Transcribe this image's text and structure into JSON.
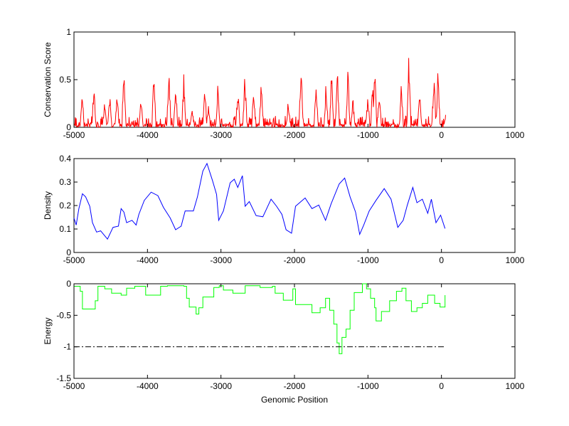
{
  "chart_data": [
    {
      "type": "line",
      "ylabel": "Conservation Score",
      "xlabel": "",
      "xlim": [
        -5000,
        1000
      ],
      "ylim": [
        0,
        1
      ],
      "xticks": [
        "-5000",
        "-4000",
        "-3000",
        "-2000",
        "-1000",
        "0",
        "1000"
      ],
      "yticks": [
        "0",
        "0.5",
        "1"
      ],
      "color": "#ff0000",
      "grid": false,
      "series": [
        {
          "name": "conservation",
          "x": [
            -4889,
            -4729,
            -4581,
            -4514,
            -4414,
            -4321,
            -4087,
            -3913,
            -3709,
            -3616,
            -3505,
            -3394,
            -3219,
            -3171,
            -3041,
            -2770,
            -2674,
            -2555,
            -2451,
            -2084,
            -1910,
            -1706,
            -1569,
            -1495,
            -1417,
            -1272,
            -1205,
            -1001,
            -937,
            -908,
            -845,
            -544,
            -444,
            -296,
            -103,
            -47,
            56
          ],
          "y": [
            0.44,
            0.48,
            0.3,
            0.37,
            0.43,
            0.67,
            0.36,
            0.62,
            0.64,
            0.55,
            0.58,
            0.24,
            0.45,
            0.27,
            0.49,
            0.45,
            0.63,
            0.44,
            0.51,
            0.31,
            0.67,
            0.49,
            0.52,
            0.69,
            0.66,
            0.63,
            0.33,
            0.36,
            0.51,
            0.67,
            0.43,
            0.5,
            0.82,
            0.39,
            0.6,
            0.64,
            0.13
          ]
        }
      ]
    },
    {
      "type": "line",
      "ylabel": "Density",
      "xlabel": "",
      "xlim": [
        -5000,
        1000
      ],
      "ylim": [
        0,
        0.4
      ],
      "xticks": [
        "-5000",
        "-4000",
        "-3000",
        "-2000",
        "-1000",
        "0",
        "1000"
      ],
      "yticks": [
        "0",
        "0.1",
        "0.2",
        "0.3",
        "0.4"
      ],
      "color": "#0000ff",
      "grid": false,
      "series": [
        {
          "name": "density",
          "x": [
            -5000,
            -4970,
            -4933,
            -4885,
            -4841,
            -4785,
            -4748,
            -4692,
            -4637,
            -4544,
            -4469,
            -4395,
            -4358,
            -4321,
            -4284,
            -4210,
            -4154,
            -4117,
            -4043,
            -3950,
            -3858,
            -3783,
            -3691,
            -3617,
            -3542,
            -3487,
            -3375,
            -3320,
            -3246,
            -3190,
            -3116,
            -3060,
            -3031,
            -2967,
            -2875,
            -2819,
            -2771,
            -2708,
            -2671,
            -2615,
            -2522,
            -2430,
            -2318,
            -2244,
            -2170,
            -2114,
            -2040,
            -1985,
            -1855,
            -1762,
            -1669,
            -1577,
            -1502,
            -1391,
            -1317,
            -1243,
            -1169,
            -1113,
            -1057,
            -983,
            -890,
            -779,
            -686,
            -594,
            -520,
            -464,
            -390,
            -334,
            -260,
            -186,
            -137,
            -74,
            -11,
            49
          ],
          "y": [
            0.147,
            0.117,
            0.187,
            0.25,
            0.237,
            0.197,
            0.127,
            0.087,
            0.092,
            0.057,
            0.107,
            0.112,
            0.187,
            0.172,
            0.127,
            0.137,
            0.117,
            0.162,
            0.222,
            0.257,
            0.242,
            0.192,
            0.147,
            0.097,
            0.112,
            0.177,
            0.177,
            0.237,
            0.347,
            0.379,
            0.307,
            0.247,
            0.137,
            0.177,
            0.297,
            0.312,
            0.277,
            0.327,
            0.197,
            0.217,
            0.157,
            0.152,
            0.227,
            0.197,
            0.162,
            0.097,
            0.082,
            0.197,
            0.232,
            0.187,
            0.202,
            0.137,
            0.207,
            0.292,
            0.317,
            0.237,
            0.172,
            0.077,
            0.117,
            0.177,
            0.222,
            0.272,
            0.227,
            0.107,
            0.137,
            0.202,
            0.277,
            0.212,
            0.227,
            0.167,
            0.227,
            0.127,
            0.159,
            0.102
          ]
        }
      ]
    },
    {
      "type": "line",
      "ylabel": "Energy",
      "xlabel": "Genomic Position",
      "xlim": [
        -5000,
        1000
      ],
      "ylim": [
        -1.5,
        0
      ],
      "xticks": [
        "-5000",
        "-4000",
        "-3000",
        "-2000",
        "-1000",
        "0",
        "1000"
      ],
      "yticks": [
        "-1.5",
        "-1",
        "-0.5",
        "0"
      ],
      "color": "#00ff00",
      "grid": false,
      "threshold": {
        "y": -1,
        "style": "dash-dot",
        "color": "#000000",
        "x": [
          -5000,
          50
        ]
      },
      "series": [
        {
          "name": "energy",
          "x": [
            -5000,
            -4915,
            -4885,
            -4766,
            -4711,
            -4674,
            -4581,
            -4488,
            -4358,
            -4284,
            -4173,
            -4025,
            -3876,
            -3821,
            -3728,
            -3505,
            -3468,
            -3431,
            -3338,
            -3301,
            -3246,
            -3153,
            -3097,
            -3023,
            -2967,
            -2838,
            -2671,
            -2467,
            -2300,
            -2263,
            -2152,
            -2022,
            -1985,
            -1855,
            -1762,
            -1651,
            -1577,
            -1521,
            -1465,
            -1421,
            -1391,
            -1354,
            -1298,
            -1243,
            -1187,
            -1076,
            -1020,
            -965,
            -909,
            -890,
            -816,
            -705,
            -612,
            -538,
            -483,
            -409,
            -334,
            -260,
            -186,
            -93,
            -19,
            49
          ],
          "y": [
            -0.04,
            -0.12,
            -0.4,
            -0.4,
            -0.27,
            -0.04,
            -0.08,
            -0.15,
            -0.18,
            -0.07,
            -0.04,
            -0.18,
            -0.18,
            -0.04,
            -0.03,
            -0.04,
            -0.23,
            -0.37,
            -0.48,
            -0.38,
            -0.21,
            -0.21,
            -0.06,
            -0.03,
            -0.1,
            -0.15,
            -0.03,
            -0.06,
            -0.04,
            -0.15,
            -0.26,
            -0.08,
            -0.33,
            -0.33,
            -0.46,
            -0.38,
            -0.23,
            -0.42,
            -0.64,
            -0.94,
            -1.11,
            -0.85,
            -0.72,
            -0.42,
            -0.14,
            0.0,
            -0.08,
            -0.23,
            -0.38,
            -0.59,
            -0.44,
            -0.27,
            -0.12,
            -0.07,
            -0.27,
            -0.44,
            -0.38,
            -0.31,
            -0.18,
            -0.31,
            -0.37,
            -0.18
          ]
        }
      ]
    }
  ]
}
